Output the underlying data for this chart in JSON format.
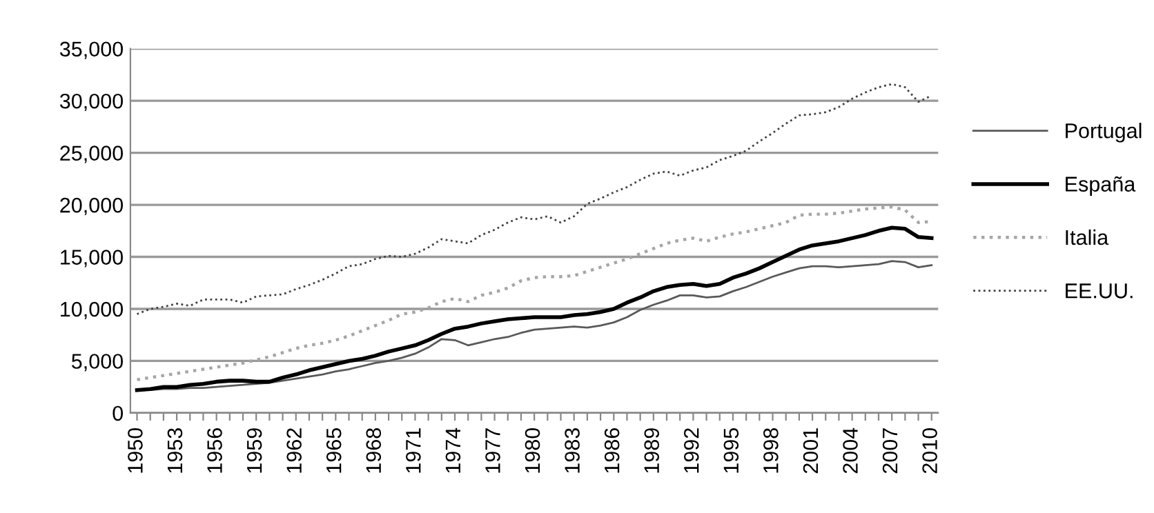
{
  "chart_data": {
    "type": "line",
    "categories": [
      "1950",
      null,
      null,
      "1953",
      null,
      null,
      "1956",
      null,
      null,
      "1959",
      null,
      null,
      "1962",
      null,
      null,
      "1965",
      null,
      null,
      "1968",
      null,
      null,
      "1971",
      null,
      null,
      "1974",
      null,
      null,
      "1977",
      null,
      null,
      "1980",
      null,
      null,
      "1983",
      null,
      null,
      "1986",
      null,
      null,
      "1989",
      null,
      null,
      "1992",
      null,
      null,
      "1995",
      null,
      null,
      "1998",
      null,
      null,
      "2001",
      null,
      null,
      "2004",
      null,
      null,
      "2007",
      null,
      null,
      "2010"
    ],
    "series": [
      {
        "name": "Portugal",
        "color": "#595959",
        "line_style": "solid",
        "values": [
          2200,
          2200,
          2300,
          2300,
          2400,
          2400,
          2500,
          2600,
          2700,
          2800,
          2900,
          3100,
          3300,
          3500,
          3700,
          4000,
          4200,
          4500,
          4800,
          5000,
          5300,
          5700,
          6300,
          7100,
          7000,
          6500,
          6800,
          7100,
          7300,
          7700,
          8000,
          8100,
          8200,
          8300,
          8200,
          8400,
          8700,
          9200,
          9900,
          10400,
          10800,
          11300,
          11300,
          11100,
          11200,
          11700,
          12100,
          12600,
          13100,
          13500,
          13900,
          14100,
          14100,
          14000,
          14100,
          14200,
          14300,
          14600,
          14500,
          14000,
          14200
        ]
      },
      {
        "name": "España",
        "color": "#000000",
        "line_style": "solid",
        "values": [
          2200,
          2300,
          2500,
          2500,
          2700,
          2800,
          3000,
          3100,
          3100,
          3000,
          3000,
          3400,
          3700,
          4100,
          4400,
          4700,
          5000,
          5200,
          5500,
          5900,
          6200,
          6500,
          7000,
          7600,
          8100,
          8300,
          8600,
          8800,
          9000,
          9100,
          9200,
          9200,
          9200,
          9400,
          9500,
          9700,
          10000,
          10600,
          11100,
          11700,
          12100,
          12300,
          12400,
          12200,
          12400,
          13000,
          13400,
          13900,
          14500,
          15100,
          15700,
          16100,
          16300,
          16500,
          16800,
          17100,
          17500,
          17800,
          17700,
          16900,
          16800
        ]
      },
      {
        "name": "Italia",
        "color": "#a6a6a6",
        "line_style": "dotted",
        "values": [
          3200,
          3400,
          3600,
          3800,
          4000,
          4200,
          4400,
          4600,
          4800,
          5100,
          5400,
          5800,
          6200,
          6500,
          6700,
          7000,
          7400,
          7900,
          8400,
          8900,
          9500,
          9700,
          10100,
          10700,
          11000,
          10700,
          11300,
          11600,
          12000,
          12700,
          13000,
          13100,
          13100,
          13200,
          13600,
          14000,
          14400,
          14800,
          15300,
          15800,
          16300,
          16600,
          16800,
          16500,
          16900,
          17200,
          17400,
          17700,
          18000,
          18300,
          19000,
          19100,
          19100,
          19200,
          19400,
          19600,
          19700,
          19800,
          19500,
          18300,
          18400
        ]
      },
      {
        "name": "EE.UU.",
        "color": "#404040",
        "line_style": "dotted",
        "values": [
          9500,
          10000,
          10200,
          10500,
          10300,
          10900,
          10900,
          10900,
          10600,
          11200,
          11300,
          11400,
          11900,
          12300,
          12800,
          13400,
          14100,
          14300,
          14800,
          15100,
          15000,
          15300,
          15900,
          16700,
          16500,
          16300,
          17100,
          17600,
          18300,
          18800,
          18600,
          18900,
          18300,
          18900,
          20100,
          20600,
          21200,
          21700,
          22400,
          23000,
          23200,
          22800,
          23300,
          23600,
          24300,
          24700,
          25200,
          26100,
          26900,
          27800,
          28600,
          28700,
          28900,
          29400,
          30200,
          30800,
          31300,
          31600,
          31300,
          29900,
          30500
        ]
      }
    ],
    "ylim": [
      0,
      35000
    ],
    "yticks": [
      {
        "value": 0,
        "label": "0"
      },
      {
        "value": 5000,
        "label": "5,000"
      },
      {
        "value": 10000,
        "label": "10,000"
      },
      {
        "value": 15000,
        "label": "15,000"
      },
      {
        "value": 20000,
        "label": "20,000"
      },
      {
        "value": 25000,
        "label": "25,000"
      },
      {
        "value": 30000,
        "label": "30,000"
      },
      {
        "value": 35000,
        "label": "35,000"
      }
    ],
    "grid": "y",
    "legend": "right",
    "marker": "none"
  }
}
